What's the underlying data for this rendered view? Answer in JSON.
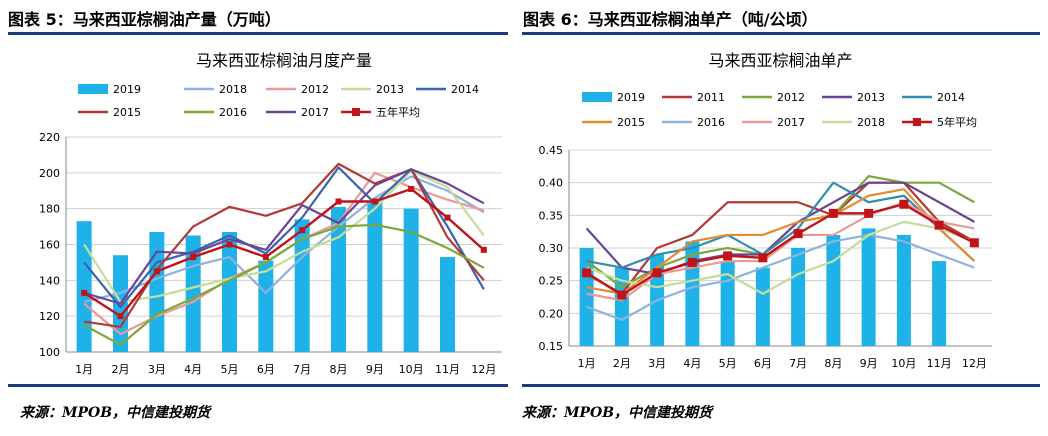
{
  "panels": [
    {
      "heading": "图表 5：马来西亚棕榈油产量（万吨）",
      "source": "来源：MPOB，中信建投期货"
    },
    {
      "heading": "图表 6：马来西亚棕榈油单产（吨/公顷）",
      "source": "来源：MPOB，中信建投期货"
    }
  ],
  "chart_data": [
    {
      "type": "bar+line",
      "title": "马来西亚棕榈油月度产量",
      "categories": [
        "1月",
        "2月",
        "3月",
        "4月",
        "5月",
        "6月",
        "7月",
        "8月",
        "9月",
        "10月",
        "11月",
        "12月"
      ],
      "ylim": [
        100,
        220
      ],
      "yticks": [
        100,
        120,
        140,
        160,
        180,
        200,
        220
      ],
      "legend_position": "top",
      "bar_series": {
        "name": "2019",
        "color": "#1fb2e8",
        "values": [
          173,
          154,
          167,
          165,
          167,
          151,
          174,
          181,
          184,
          180,
          153,
          null
        ]
      },
      "series": [
        {
          "name": "2018",
          "color": "#8fb2dc",
          "values": [
            128,
            133,
            141,
            148,
            153,
            133,
            153,
            170,
            186,
            198,
            190,
            178
          ]
        },
        {
          "name": "2012",
          "color": "#e89a98",
          "values": [
            127,
            110,
            120,
            128,
            141,
            150,
            163,
            172,
            200,
            192,
            185,
            179
          ]
        },
        {
          "name": "2013",
          "color": "#c5dc9a",
          "values": [
            160,
            128,
            131,
            136,
            141,
            145,
            156,
            164,
            180,
            201,
            192,
            165
          ]
        },
        {
          "name": "2014",
          "color": "#3a64b0",
          "values": [
            150,
            125,
            150,
            156,
            165,
            155,
            175,
            203,
            183,
            202,
            170,
            135
          ]
        },
        {
          "name": "2015",
          "color": "#b03a38",
          "values": [
            117,
            114,
            146,
            170,
            181,
            176,
            183,
            205,
            194,
            202,
            164,
            140
          ]
        },
        {
          "name": "2016",
          "color": "#7aa83a",
          "values": [
            115,
            104,
            121,
            130,
            140,
            150,
            163,
            170,
            171,
            167,
            158,
            147
          ]
        },
        {
          "name": "2017",
          "color": "#6a4595",
          "values": [
            133,
            127,
            156,
            155,
            163,
            157,
            182,
            172,
            193,
            202,
            194,
            183
          ]
        },
        {
          "name": "五年平均",
          "color": "#c0141a",
          "values": [
            133,
            120,
            145,
            153,
            160,
            153,
            168,
            184,
            184,
            191,
            175,
            157
          ]
        }
      ]
    },
    {
      "type": "bar+line",
      "title": "马来西亚棕榈油单产",
      "categories": [
        "1月",
        "2月",
        "3月",
        "4月",
        "5月",
        "6月",
        "7月",
        "8月",
        "9月",
        "10月",
        "11月",
        "12月"
      ],
      "ylim": [
        0.15,
        0.45
      ],
      "yticks": [
        "0.15",
        "0.20",
        "0.25",
        "0.30",
        "0.35",
        "0.40",
        "0.45"
      ],
      "legend_position": "top",
      "bar_series": {
        "name": "2019",
        "color": "#1fb2e8",
        "values": [
          0.3,
          0.27,
          0.29,
          0.31,
          0.28,
          0.27,
          0.3,
          0.32,
          0.33,
          0.32,
          0.28,
          null
        ]
      },
      "series": [
        {
          "name": "2011",
          "color": "#b03a38",
          "values": [
            0.26,
            0.23,
            0.3,
            0.32,
            0.37,
            0.37,
            0.37,
            0.35,
            0.4,
            0.4,
            0.34,
            0.31
          ]
        },
        {
          "name": "2012",
          "color": "#7aa83a",
          "values": [
            0.28,
            0.24,
            0.27,
            0.29,
            0.3,
            0.29,
            0.34,
            0.35,
            0.41,
            0.4,
            0.4,
            0.37
          ]
        },
        {
          "name": "2013",
          "color": "#6a4595",
          "values": [
            0.33,
            0.27,
            0.26,
            0.28,
            0.29,
            0.29,
            0.34,
            0.37,
            0.4,
            0.4,
            0.37,
            0.34
          ]
        },
        {
          "name": "2014",
          "color": "#2f8fb0",
          "values": [
            0.28,
            0.27,
            0.29,
            0.3,
            0.32,
            0.29,
            0.33,
            0.4,
            0.37,
            0.38,
            0.33,
            0.28
          ]
        },
        {
          "name": "2015",
          "color": "#e58a32",
          "values": [
            0.24,
            0.23,
            0.27,
            0.31,
            0.32,
            0.32,
            0.34,
            0.35,
            0.38,
            0.39,
            0.33,
            0.28
          ]
        },
        {
          "name": "2016",
          "color": "#8fb2dc",
          "values": [
            0.21,
            0.19,
            0.22,
            0.24,
            0.25,
            0.27,
            0.29,
            0.31,
            0.32,
            0.31,
            0.29,
            0.27
          ]
        },
        {
          "name": "2017",
          "color": "#e89a98",
          "values": [
            0.23,
            0.22,
            0.26,
            0.27,
            0.28,
            0.28,
            0.32,
            0.32,
            0.35,
            0.37,
            0.34,
            0.33
          ]
        },
        {
          "name": "2018",
          "color": "#c5dc9a",
          "values": [
            0.27,
            0.25,
            0.24,
            0.25,
            0.26,
            0.23,
            0.26,
            0.28,
            0.32,
            0.34,
            0.33,
            0.31
          ]
        },
        {
          "name": "5年平均",
          "color": "#c0141a",
          "values": [
            0.262,
            0.228,
            0.262,
            0.278,
            0.288,
            0.285,
            0.322,
            0.353,
            0.353,
            0.367,
            0.335,
            0.308
          ]
        }
      ]
    }
  ]
}
